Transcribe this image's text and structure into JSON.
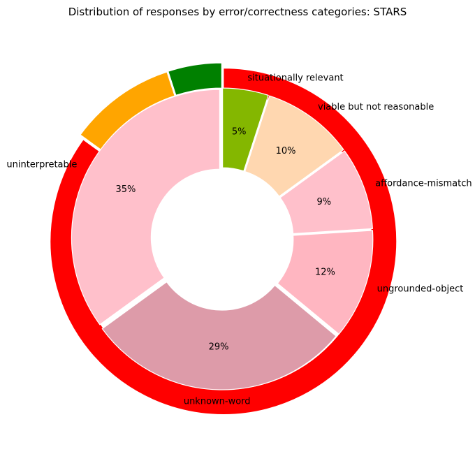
{
  "chart_data": {
    "type": "pie",
    "title": "Distribution of responses by error/correctness categories: STARS",
    "style": "nested-donut",
    "outer_ring": [
      {
        "value": 85,
        "color": "#ff0000"
      },
      {
        "value": 10,
        "color": "#ffa500"
      },
      {
        "value": 5,
        "color": "#008000"
      }
    ],
    "inner_ring": [
      {
        "label": "situationally relevant",
        "value": 5,
        "value_label": "5%",
        "color": "#84b700"
      },
      {
        "label": "viable but not reasonable",
        "value": 10,
        "value_label": "10%",
        "color": "#ffd7b0"
      },
      {
        "label": "affordance-mismatch",
        "value": 9,
        "value_label": "9%",
        "color": "#ffc0cb"
      },
      {
        "label": "ungrounded-object",
        "value": 12,
        "value_label": "12%",
        "color": "#ffb6c1"
      },
      {
        "label": "unknown-word",
        "value": 29,
        "value_label": "29%",
        "color": "#dd9ba9"
      },
      {
        "label": "uninterpretable",
        "value": 35,
        "value_label": "35%",
        "color": "#ffc0cb"
      }
    ],
    "start_angle_deg": 90,
    "direction": "clockwise"
  }
}
